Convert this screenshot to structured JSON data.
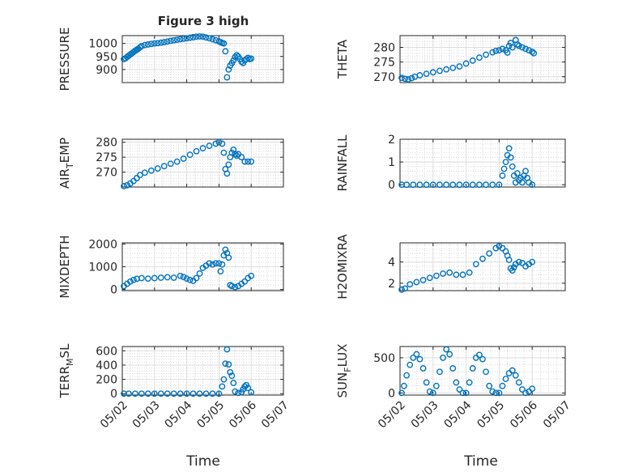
{
  "figure": {
    "title": "Figure 3 high",
    "xlabel_left": "Time",
    "xlabel_right": "Time",
    "marker_color": "#0072BD"
  },
  "chart_data": [
    {
      "type": "scatter",
      "ylabel": "PRESSURE",
      "ylim": [
        850,
        1030
      ],
      "yticks": [
        900,
        950,
        1000
      ],
      "xlim": [
        0,
        5
      ],
      "xticks": [
        0,
        1,
        2,
        3,
        4,
        5
      ],
      "xticklabels": [
        "05/02",
        "05/03",
        "05/04",
        "05/05",
        "05/06",
        "05/07"
      ],
      "grid": true,
      "points": [
        [
          0.05,
          940
        ],
        [
          0.1,
          943
        ],
        [
          0.15,
          948
        ],
        [
          0.2,
          953
        ],
        [
          0.25,
          958
        ],
        [
          0.3,
          962
        ],
        [
          0.35,
          967
        ],
        [
          0.4,
          972
        ],
        [
          0.45,
          976
        ],
        [
          0.5,
          980
        ],
        [
          0.55,
          985
        ],
        [
          0.6,
          990
        ],
        [
          0.7,
          994
        ],
        [
          0.8,
          996
        ],
        [
          0.9,
          998
        ],
        [
          1.0,
          1000
        ],
        [
          1.1,
          1001
        ],
        [
          1.2,
          1003
        ],
        [
          1.3,
          1005
        ],
        [
          1.4,
          1007
        ],
        [
          1.5,
          1010
        ],
        [
          1.6,
          1012
        ],
        [
          1.7,
          1014
        ],
        [
          1.8,
          1016
        ],
        [
          1.9,
          1018
        ],
        [
          2.0,
          1020
        ],
        [
          2.1,
          1022
        ],
        [
          2.2,
          1024
        ],
        [
          2.3,
          1026
        ],
        [
          2.4,
          1027
        ],
        [
          2.5,
          1026
        ],
        [
          2.6,
          1023
        ],
        [
          2.7,
          1020
        ],
        [
          2.8,
          1016
        ],
        [
          2.9,
          1012
        ],
        [
          3.0,
          1008
        ],
        [
          3.05,
          1005
        ],
        [
          3.1,
          1002
        ],
        [
          3.15,
          1000
        ],
        [
          3.2,
          970
        ],
        [
          3.25,
          870
        ],
        [
          3.3,
          900
        ],
        [
          3.35,
          915
        ],
        [
          3.4,
          925
        ],
        [
          3.45,
          935
        ],
        [
          3.5,
          948
        ],
        [
          3.55,
          955
        ],
        [
          3.6,
          950
        ],
        [
          3.65,
          940
        ],
        [
          3.7,
          930
        ],
        [
          3.75,
          925
        ],
        [
          3.8,
          935
        ],
        [
          3.85,
          940
        ],
        [
          3.9,
          945
        ],
        [
          3.95,
          940
        ],
        [
          4.0,
          942
        ]
      ]
    },
    {
      "type": "scatter",
      "ylabel": "THETA",
      "ylim": [
        268,
        284
      ],
      "yticks": [
        270,
        275,
        280
      ],
      "xlim": [
        0,
        5
      ],
      "xticks": [
        0,
        1,
        2,
        3,
        4,
        5
      ],
      "xticklabels": [
        "05/02",
        "05/03",
        "05/04",
        "05/05",
        "05/06",
        "05/07"
      ],
      "grid": true,
      "points": [
        [
          0.05,
          269.6
        ],
        [
          0.15,
          269.3
        ],
        [
          0.25,
          269.1
        ],
        [
          0.35,
          269.5
        ],
        [
          0.45,
          270.0
        ],
        [
          0.6,
          270.5
        ],
        [
          0.8,
          271.0
        ],
        [
          1.0,
          271.5
        ],
        [
          1.2,
          272.0
        ],
        [
          1.4,
          272.5
        ],
        [
          1.6,
          273.0
        ],
        [
          1.8,
          273.5
        ],
        [
          2.0,
          274.5
        ],
        [
          2.2,
          275.5
        ],
        [
          2.4,
          276.5
        ],
        [
          2.6,
          277.5
        ],
        [
          2.8,
          278.3
        ],
        [
          2.9,
          278.8
        ],
        [
          3.0,
          279.0
        ],
        [
          3.1,
          279.5
        ],
        [
          3.2,
          279.0
        ],
        [
          3.25,
          278.2
        ],
        [
          3.3,
          280.5
        ],
        [
          3.35,
          281.5
        ],
        [
          3.4,
          280.0
        ],
        [
          3.5,
          282.5
        ],
        [
          3.55,
          281.0
        ],
        [
          3.6,
          280.5
        ],
        [
          3.7,
          280.0
        ],
        [
          3.8,
          279.5
        ],
        [
          3.9,
          279.0
        ],
        [
          4.0,
          278.5
        ],
        [
          4.05,
          278.0
        ]
      ]
    },
    {
      "type": "scatter",
      "ylabel": "AIR_TEMP",
      "ylim": [
        265,
        281
      ],
      "yticks": [
        270,
        275,
        280
      ],
      "xlim": [
        0,
        5
      ],
      "xticks": [
        0,
        1,
        2,
        3,
        4,
        5
      ],
      "xticklabels": [
        "05/02",
        "05/03",
        "05/04",
        "05/05",
        "05/06",
        "05/07"
      ],
      "grid": true,
      "points": [
        [
          0.05,
          265.3
        ],
        [
          0.15,
          265.6
        ],
        [
          0.25,
          266.2
        ],
        [
          0.35,
          267.0
        ],
        [
          0.45,
          268.0
        ],
        [
          0.55,
          269.0
        ],
        [
          0.7,
          269.8
        ],
        [
          0.9,
          270.5
        ],
        [
          1.1,
          271.2
        ],
        [
          1.3,
          272.0
        ],
        [
          1.5,
          272.8
        ],
        [
          1.7,
          273.5
        ],
        [
          1.9,
          274.5
        ],
        [
          2.1,
          275.8
        ],
        [
          2.3,
          277.0
        ],
        [
          2.5,
          278.0
        ],
        [
          2.7,
          278.8
        ],
        [
          2.9,
          279.5
        ],
        [
          3.0,
          280.0
        ],
        [
          3.1,
          279.5
        ],
        [
          3.15,
          276.5
        ],
        [
          3.2,
          271.0
        ],
        [
          3.25,
          269.5
        ],
        [
          3.3,
          272.5
        ],
        [
          3.35,
          275.0
        ],
        [
          3.4,
          276.5
        ],
        [
          3.45,
          277.5
        ],
        [
          3.5,
          276.0
        ],
        [
          3.55,
          275.5
        ],
        [
          3.6,
          276.0
        ],
        [
          3.7,
          275.0
        ],
        [
          3.8,
          273.5
        ],
        [
          3.9,
          273.5
        ],
        [
          4.0,
          273.5
        ]
      ]
    },
    {
      "type": "scatter",
      "ylabel": "RAINFALL",
      "ylim": [
        -0.1,
        2
      ],
      "yticks": [
        0,
        1,
        2
      ],
      "xlim": [
        0,
        5
      ],
      "xticks": [
        0,
        1,
        2,
        3,
        4,
        5
      ],
      "xticklabels": [
        "05/02",
        "05/03",
        "05/04",
        "05/05",
        "05/06",
        "05/07"
      ],
      "grid": true,
      "points": [
        [
          0.05,
          0
        ],
        [
          0.2,
          0
        ],
        [
          0.4,
          0
        ],
        [
          0.6,
          0
        ],
        [
          0.8,
          0
        ],
        [
          1.0,
          0
        ],
        [
          1.2,
          0
        ],
        [
          1.4,
          0
        ],
        [
          1.6,
          0
        ],
        [
          1.8,
          0
        ],
        [
          2.0,
          0
        ],
        [
          2.2,
          0
        ],
        [
          2.4,
          0
        ],
        [
          2.6,
          0
        ],
        [
          2.8,
          0
        ],
        [
          3.0,
          0
        ],
        [
          3.1,
          0.4
        ],
        [
          3.15,
          0.7
        ],
        [
          3.2,
          1.0
        ],
        [
          3.25,
          1.3
        ],
        [
          3.3,
          1.6
        ],
        [
          3.35,
          1.2
        ],
        [
          3.4,
          0.8
        ],
        [
          3.45,
          0.4
        ],
        [
          3.5,
          0.1
        ],
        [
          3.55,
          0.5
        ],
        [
          3.6,
          0.2
        ],
        [
          3.65,
          0.3
        ],
        [
          3.7,
          0.1
        ],
        [
          3.75,
          0.4
        ],
        [
          3.8,
          0.6
        ],
        [
          3.85,
          0.3
        ],
        [
          3.9,
          0.1
        ],
        [
          4.0,
          0
        ]
      ]
    },
    {
      "type": "scatter",
      "ylabel": "MIXDEPTH",
      "ylim": [
        -50,
        2050
      ],
      "yticks": [
        0,
        1000,
        2000
      ],
      "xlim": [
        0,
        5
      ],
      "xticks": [
        0,
        1,
        2,
        3,
        4,
        5
      ],
      "xticklabels": [
        "05/02",
        "05/03",
        "05/04",
        "05/05",
        "05/06",
        "05/07"
      ],
      "grid": true,
      "points": [
        [
          0.05,
          150
        ],
        [
          0.15,
          250
        ],
        [
          0.25,
          350
        ],
        [
          0.35,
          420
        ],
        [
          0.45,
          470
        ],
        [
          0.6,
          500
        ],
        [
          0.8,
          480
        ],
        [
          1.0,
          500
        ],
        [
          1.2,
          520
        ],
        [
          1.4,
          540
        ],
        [
          1.6,
          520
        ],
        [
          1.8,
          600
        ],
        [
          1.9,
          550
        ],
        [
          2.0,
          480
        ],
        [
          2.1,
          420
        ],
        [
          2.2,
          380
        ],
        [
          2.3,
          500
        ],
        [
          2.4,
          700
        ],
        [
          2.5,
          950
        ],
        [
          2.6,
          1050
        ],
        [
          2.7,
          1150
        ],
        [
          2.8,
          1100
        ],
        [
          2.9,
          1150
        ],
        [
          3.0,
          1150
        ],
        [
          3.05,
          800
        ],
        [
          3.1,
          1100
        ],
        [
          3.15,
          1500
        ],
        [
          3.2,
          1750
        ],
        [
          3.25,
          1600
        ],
        [
          3.3,
          1400
        ],
        [
          3.35,
          200
        ],
        [
          3.4,
          150
        ],
        [
          3.5,
          100
        ],
        [
          3.6,
          150
        ],
        [
          3.7,
          250
        ],
        [
          3.8,
          350
        ],
        [
          3.9,
          500
        ],
        [
          4.0,
          600
        ]
      ]
    },
    {
      "type": "scatter",
      "ylabel": "H2OMIXRA",
      "ylim": [
        1.3,
        5.8
      ],
      "yticks": [
        2,
        4
      ],
      "xlim": [
        0,
        5
      ],
      "xticks": [
        0,
        1,
        2,
        3,
        4,
        5
      ],
      "xticklabels": [
        "05/02",
        "05/03",
        "05/04",
        "05/05",
        "05/06",
        "05/07"
      ],
      "grid": true,
      "points": [
        [
          0.05,
          1.4
        ],
        [
          0.15,
          1.5
        ],
        [
          0.3,
          1.9
        ],
        [
          0.5,
          2.1
        ],
        [
          0.7,
          2.3
        ],
        [
          0.9,
          2.5
        ],
        [
          1.1,
          2.7
        ],
        [
          1.3,
          2.9
        ],
        [
          1.5,
          3.0
        ],
        [
          1.7,
          2.8
        ],
        [
          1.9,
          2.8
        ],
        [
          2.1,
          3.0
        ],
        [
          2.3,
          3.8
        ],
        [
          2.5,
          4.3
        ],
        [
          2.7,
          4.8
        ],
        [
          2.9,
          5.3
        ],
        [
          3.0,
          5.5
        ],
        [
          3.1,
          5.3
        ],
        [
          3.2,
          5.0
        ],
        [
          3.25,
          4.6
        ],
        [
          3.3,
          4.2
        ],
        [
          3.35,
          3.4
        ],
        [
          3.4,
          3.2
        ],
        [
          3.45,
          3.5
        ],
        [
          3.5,
          3.8
        ],
        [
          3.6,
          4.0
        ],
        [
          3.7,
          3.9
        ],
        [
          3.8,
          3.6
        ],
        [
          3.9,
          3.8
        ],
        [
          4.0,
          4.0
        ]
      ]
    },
    {
      "type": "scatter",
      "ylabel": "TERR_MSL",
      "ylim": [
        -20,
        660
      ],
      "yticks": [
        0,
        200,
        400,
        600
      ],
      "xlim": [
        0,
        5
      ],
      "xticks": [
        0,
        1,
        2,
        3,
        4,
        5
      ],
      "xticklabels": [
        "05/02",
        "05/03",
        "05/04",
        "05/05",
        "05/06",
        "05/07"
      ],
      "grid": true,
      "points": [
        [
          0.05,
          0
        ],
        [
          0.2,
          0
        ],
        [
          0.4,
          0
        ],
        [
          0.6,
          0
        ],
        [
          0.8,
          0
        ],
        [
          1.0,
          0
        ],
        [
          1.2,
          0
        ],
        [
          1.4,
          0
        ],
        [
          1.6,
          0
        ],
        [
          1.8,
          0
        ],
        [
          2.0,
          0
        ],
        [
          2.2,
          0
        ],
        [
          2.4,
          0
        ],
        [
          2.6,
          0
        ],
        [
          2.8,
          0
        ],
        [
          3.0,
          0
        ],
        [
          3.1,
          100
        ],
        [
          3.15,
          200
        ],
        [
          3.2,
          420
        ],
        [
          3.25,
          620
        ],
        [
          3.3,
          410
        ],
        [
          3.35,
          300
        ],
        [
          3.4,
          250
        ],
        [
          3.45,
          150
        ],
        [
          3.5,
          30
        ],
        [
          3.6,
          10
        ],
        [
          3.7,
          20
        ],
        [
          3.75,
          60
        ],
        [
          3.8,
          100
        ],
        [
          3.85,
          120
        ],
        [
          3.9,
          80
        ],
        [
          4.0,
          20
        ]
      ]
    },
    {
      "type": "scatter",
      "ylabel": "SUN_FLUX",
      "ylim": [
        -30,
        660
      ],
      "yticks": [
        0,
        500
      ],
      "xlim": [
        0,
        5
      ],
      "xticks": [
        0,
        1,
        2,
        3,
        4,
        5
      ],
      "xticklabels": [
        "05/02",
        "05/03",
        "05/04",
        "05/05",
        "05/06",
        "05/07"
      ],
      "grid": true,
      "points": [
        [
          0.05,
          0
        ],
        [
          0.12,
          100
        ],
        [
          0.2,
          250
        ],
        [
          0.3,
          400
        ],
        [
          0.4,
          500
        ],
        [
          0.5,
          550
        ],
        [
          0.6,
          480
        ],
        [
          0.7,
          350
        ],
        [
          0.8,
          150
        ],
        [
          0.9,
          20
        ],
        [
          1.0,
          0
        ],
        [
          1.1,
          100
        ],
        [
          1.2,
          300
        ],
        [
          1.3,
          500
        ],
        [
          1.4,
          620
        ],
        [
          1.5,
          550
        ],
        [
          1.6,
          350
        ],
        [
          1.7,
          150
        ],
        [
          1.8,
          50
        ],
        [
          1.9,
          0
        ],
        [
          2.0,
          0
        ],
        [
          2.1,
          150
        ],
        [
          2.2,
          350
        ],
        [
          2.3,
          500
        ],
        [
          2.4,
          540
        ],
        [
          2.5,
          480
        ],
        [
          2.6,
          300
        ],
        [
          2.7,
          100
        ],
        [
          2.8,
          20
        ],
        [
          2.9,
          0
        ],
        [
          3.0,
          0
        ],
        [
          3.1,
          100
        ],
        [
          3.2,
          200
        ],
        [
          3.3,
          280
        ],
        [
          3.4,
          320
        ],
        [
          3.5,
          250
        ],
        [
          3.6,
          150
        ],
        [
          3.7,
          50
        ],
        [
          3.8,
          0
        ],
        [
          3.9,
          20
        ],
        [
          4.0,
          60
        ]
      ]
    }
  ]
}
